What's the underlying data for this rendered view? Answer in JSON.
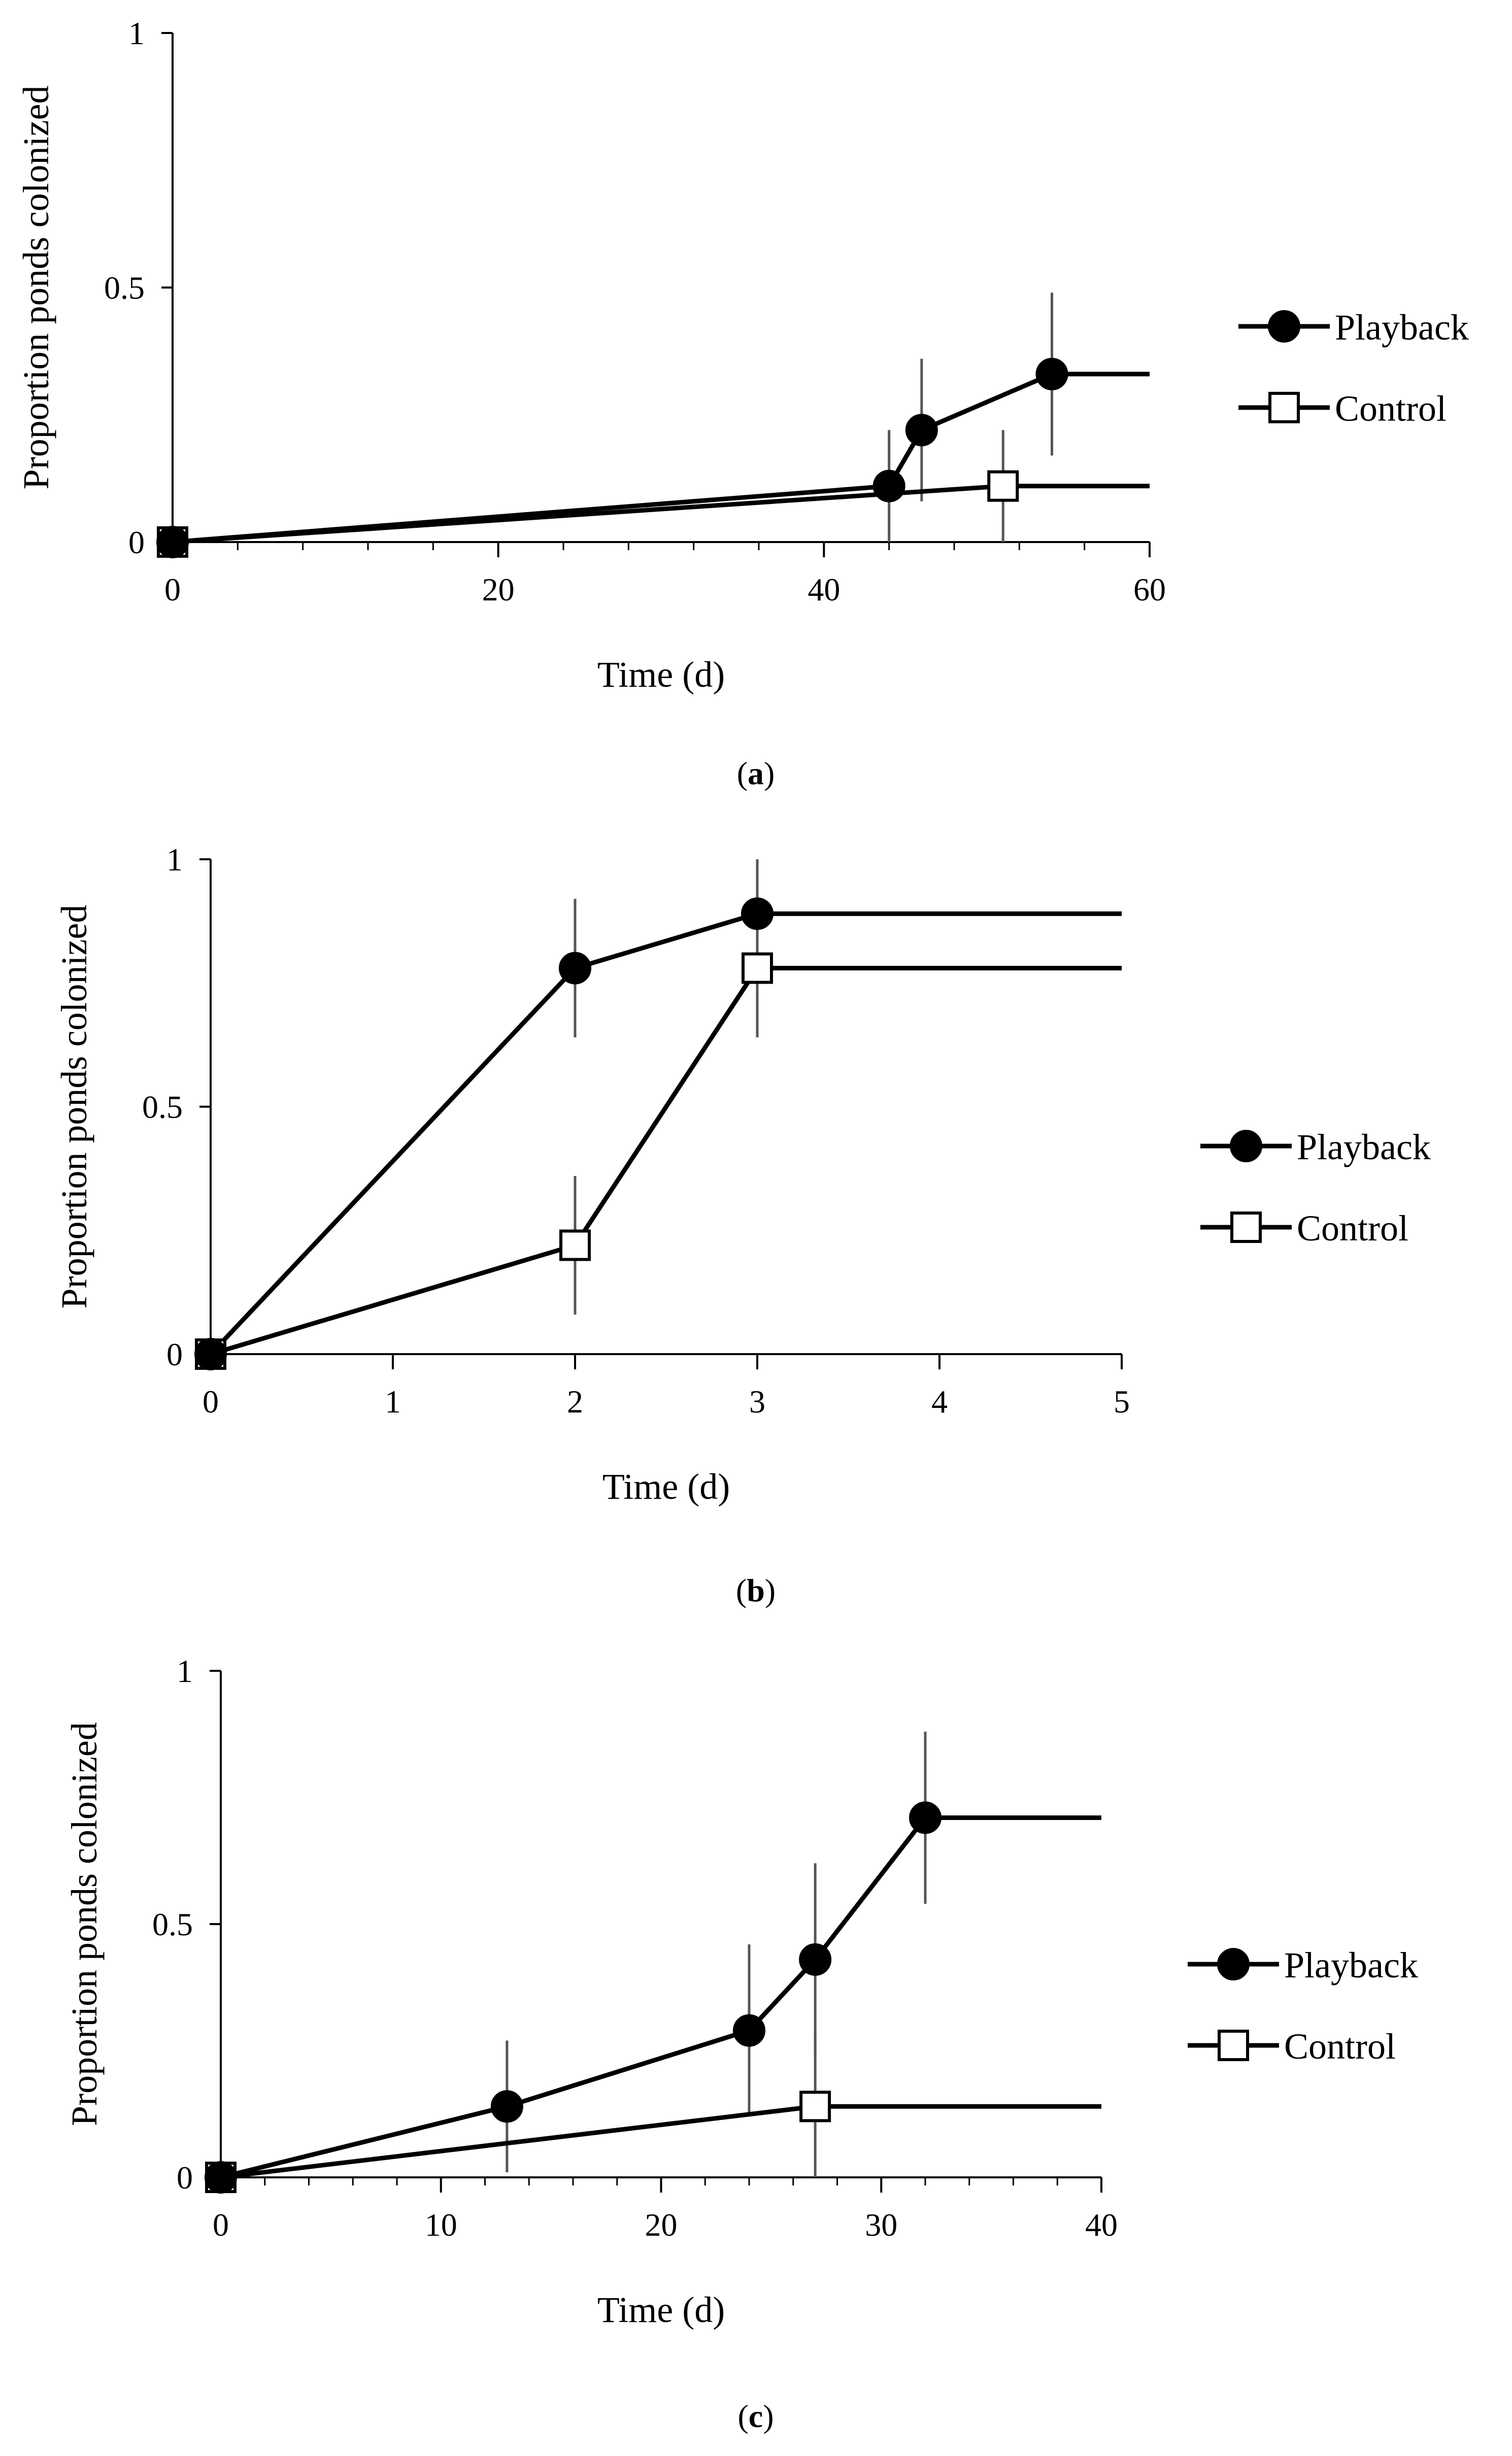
{
  "colors": {
    "ink": "#000000",
    "error_bar": "#555555",
    "background": "#ffffff",
    "control_fill": "#ffffff"
  },
  "chart_data": [
    {
      "type": "line",
      "panel": "a",
      "xlabel": "Time (d)",
      "ylabel": "Proportion ponds colonized",
      "xlim": [
        0,
        60
      ],
      "ylim": [
        0,
        1
      ],
      "xticks": [
        0,
        20,
        40,
        60
      ],
      "xminor_step": 4,
      "yticks": [
        0,
        0.5,
        1
      ],
      "ytick_labels": [
        "0",
        "0.5",
        "1"
      ],
      "grid": false,
      "legend_position": "right",
      "series": [
        {
          "name": "Playback",
          "marker": "filled-circle",
          "x": [
            0,
            44,
            46,
            54,
            60
          ],
          "y": [
            0,
            0.11,
            0.22,
            0.33,
            0.33
          ],
          "markers": [
            true,
            true,
            true,
            true,
            false
          ],
          "error": [
            null,
            0.11,
            0.14,
            0.16,
            null
          ]
        },
        {
          "name": "Control",
          "marker": "open-square",
          "x": [
            0,
            51,
            60
          ],
          "y": [
            0,
            0.11,
            0.11
          ],
          "markers": [
            true,
            true,
            false
          ],
          "error": [
            null,
            0.11,
            null
          ]
        }
      ]
    },
    {
      "type": "line",
      "panel": "b",
      "xlabel": "Time (d)",
      "ylabel": "Proportion ponds colonized",
      "xlim": [
        0,
        5
      ],
      "ylim": [
        0,
        1
      ],
      "xticks": [
        0,
        1,
        2,
        3,
        4,
        5
      ],
      "xminor_step": null,
      "yticks": [
        0,
        0.5,
        1
      ],
      "ytick_labels": [
        "0",
        "0.5",
        "1"
      ],
      "grid": false,
      "legend_position": "right",
      "series": [
        {
          "name": "Playback",
          "marker": "filled-circle",
          "x": [
            0,
            2,
            3,
            5
          ],
          "y": [
            0,
            0.78,
            0.89,
            0.89
          ],
          "markers": [
            true,
            true,
            true,
            false
          ],
          "error": [
            null,
            0.14,
            0.11,
            null
          ]
        },
        {
          "name": "Control",
          "marker": "open-square",
          "x": [
            0,
            2,
            3,
            5
          ],
          "y": [
            0,
            0.22,
            0.78,
            0.78
          ],
          "markers": [
            true,
            true,
            true,
            false
          ],
          "error": [
            null,
            0.14,
            0.14,
            null
          ]
        }
      ]
    },
    {
      "type": "line",
      "panel": "c",
      "xlabel": "Time (d)",
      "ylabel": "Proportion ponds colonized",
      "xlim": [
        0,
        40
      ],
      "ylim": [
        0,
        1
      ],
      "xticks": [
        0,
        10,
        20,
        30,
        40
      ],
      "xminor_step": 2,
      "yticks": [
        0,
        0.5,
        1
      ],
      "ytick_labels": [
        "0",
        "0.5",
        "1"
      ],
      "grid": false,
      "legend_position": "right",
      "series": [
        {
          "name": "Playback",
          "marker": "filled-circle",
          "x": [
            0,
            13,
            24,
            27,
            32,
            40
          ],
          "y": [
            0,
            0.14,
            0.29,
            0.43,
            0.71,
            0.71
          ],
          "markers": [
            true,
            true,
            true,
            true,
            true,
            false
          ],
          "error": [
            null,
            0.13,
            0.17,
            0.19,
            0.17,
            null
          ]
        },
        {
          "name": "Control",
          "marker": "open-square",
          "x": [
            0,
            27,
            40
          ],
          "y": [
            0,
            0.14,
            0.14
          ],
          "markers": [
            true,
            true,
            false
          ],
          "error": [
            null,
            0.14,
            null
          ]
        }
      ]
    }
  ],
  "captions": [
    "a",
    "b",
    "c"
  ]
}
